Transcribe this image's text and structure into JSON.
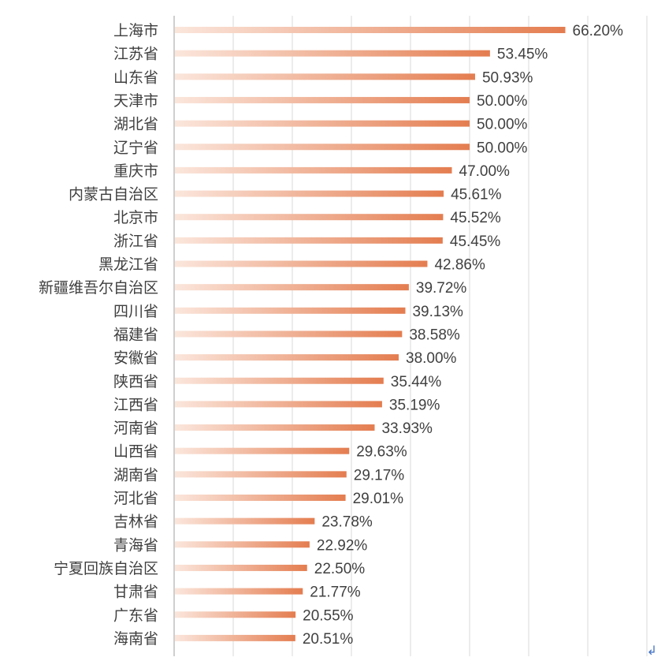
{
  "chart_data": {
    "type": "bar",
    "orientation": "horizontal",
    "categories": [
      "上海市",
      "江苏省",
      "山东省",
      "天津市",
      "湖北省",
      "辽宁省",
      "重庆市",
      "内蒙古自治区",
      "北京市",
      "浙江省",
      "黑龙江省",
      "新疆维吾尔自治区",
      "四川省",
      "福建省",
      "安徽省",
      "陕西省",
      "江西省",
      "河南省",
      "山西省",
      "湖南省",
      "河北省",
      "吉林省",
      "青海省",
      "宁夏回族自治区",
      "甘肃省",
      "广东省",
      "海南省"
    ],
    "values": [
      66.2,
      53.45,
      50.93,
      50.0,
      50.0,
      50.0,
      47.0,
      45.61,
      45.52,
      45.45,
      42.86,
      39.72,
      39.13,
      38.58,
      38.0,
      35.44,
      35.19,
      33.93,
      29.63,
      29.17,
      29.01,
      23.78,
      22.92,
      22.5,
      21.77,
      20.55,
      20.51
    ],
    "value_labels": [
      "66.20%",
      "53.45%",
      "50.93%",
      "50.00%",
      "50.00%",
      "50.00%",
      "47.00%",
      "45.61%",
      "45.52%",
      "45.45%",
      "42.86%",
      "39.72%",
      "39.13%",
      "38.58%",
      "38.00%",
      "35.44%",
      "35.19%",
      "33.93%",
      "29.63%",
      "29.17%",
      "29.01%",
      "23.78%",
      "22.92%",
      "22.50%",
      "21.77%",
      "20.55%",
      "20.51%"
    ],
    "xlim": [
      0,
      90
    ],
    "grid": true,
    "bar_color": "#e47d50",
    "bar_fade_color": "#fbe6dc"
  },
  "return_mark": "↲"
}
